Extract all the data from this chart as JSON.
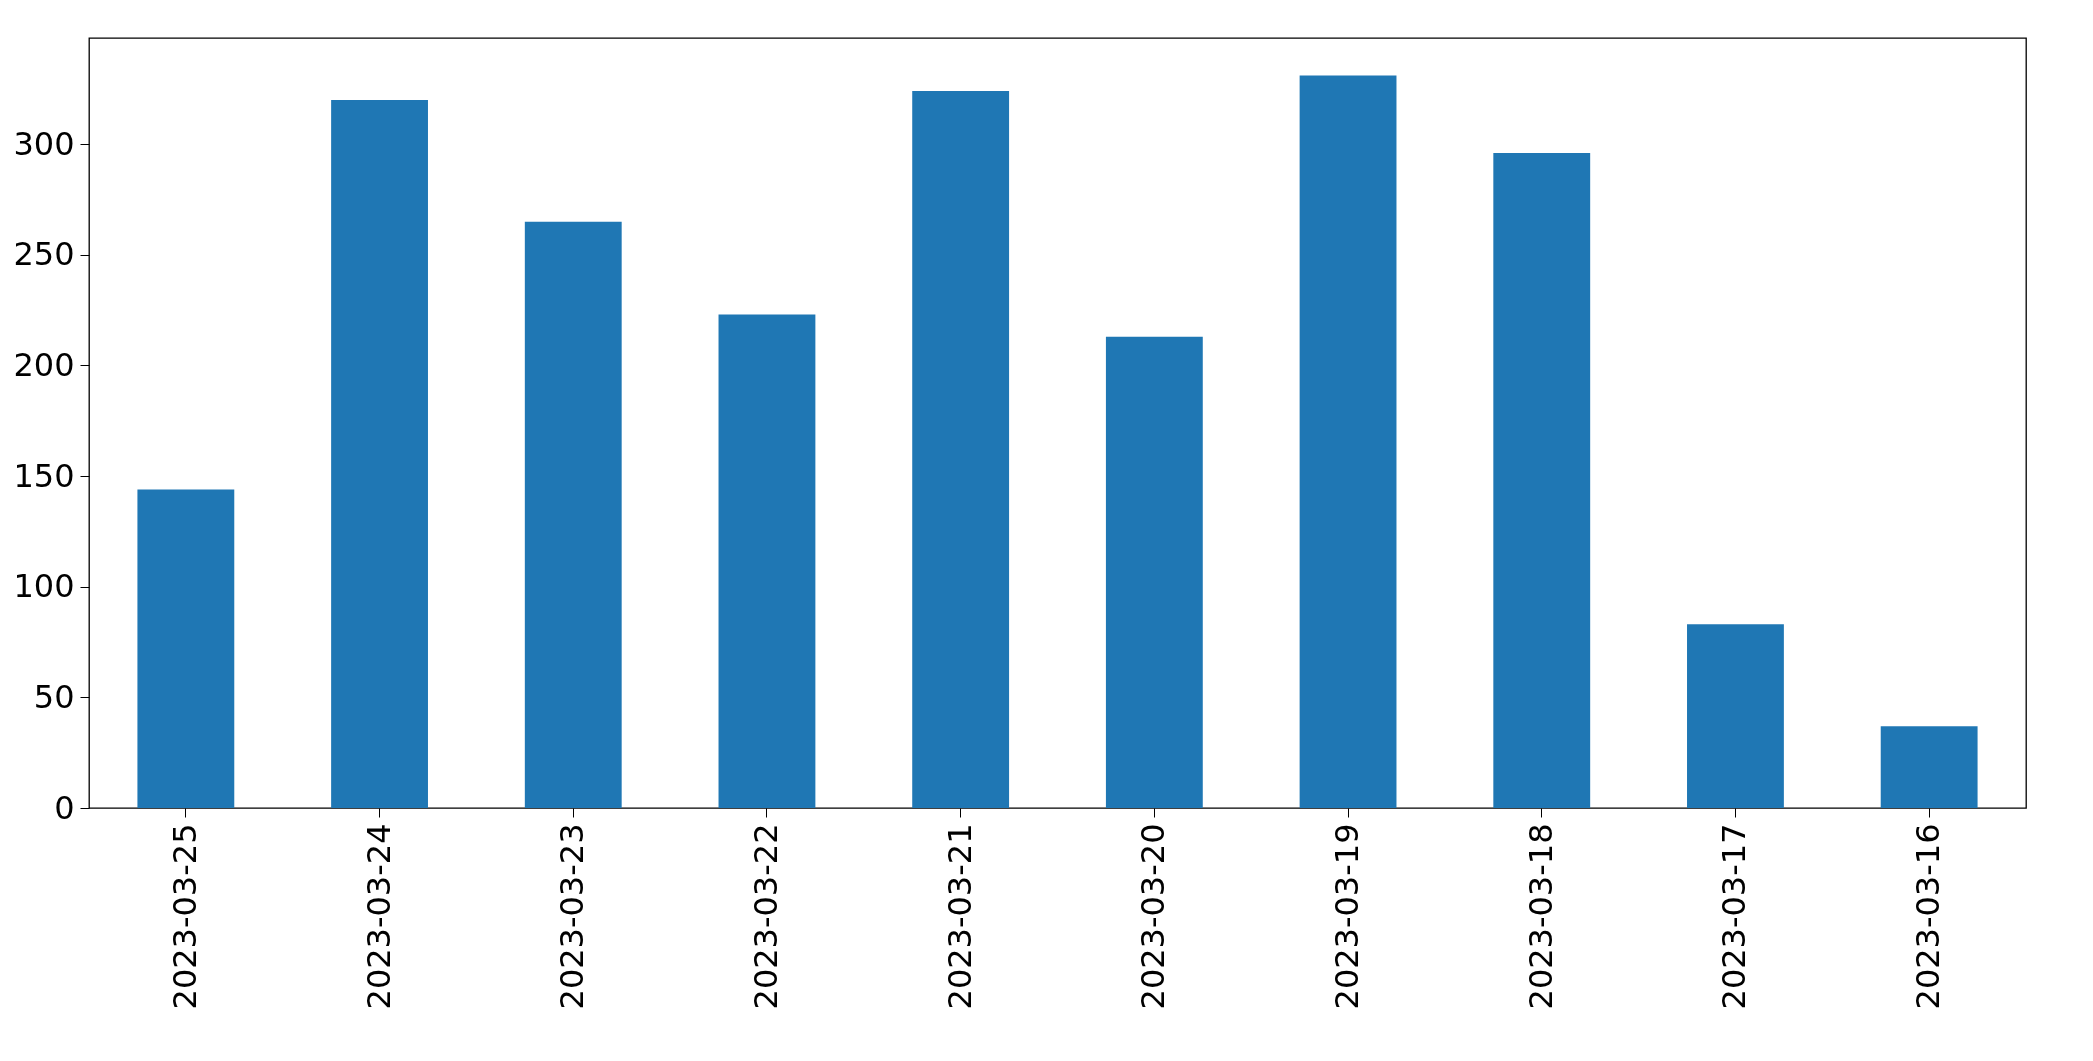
{
  "chart_data": {
    "type": "bar",
    "categories": [
      "2023-03-25",
      "2023-03-24",
      "2023-03-23",
      "2023-03-22",
      "2023-03-21",
      "2023-03-20",
      "2023-03-19",
      "2023-03-18",
      "2023-03-17",
      "2023-03-16"
    ],
    "values": [
      144,
      320,
      265,
      223,
      324,
      213,
      331,
      296,
      83,
      37
    ],
    "color": "#1f77b4",
    "ylim": [
      0,
      348
    ],
    "yticks": [
      0,
      50,
      100,
      150,
      200,
      250,
      300
    ],
    "grid": false
  }
}
